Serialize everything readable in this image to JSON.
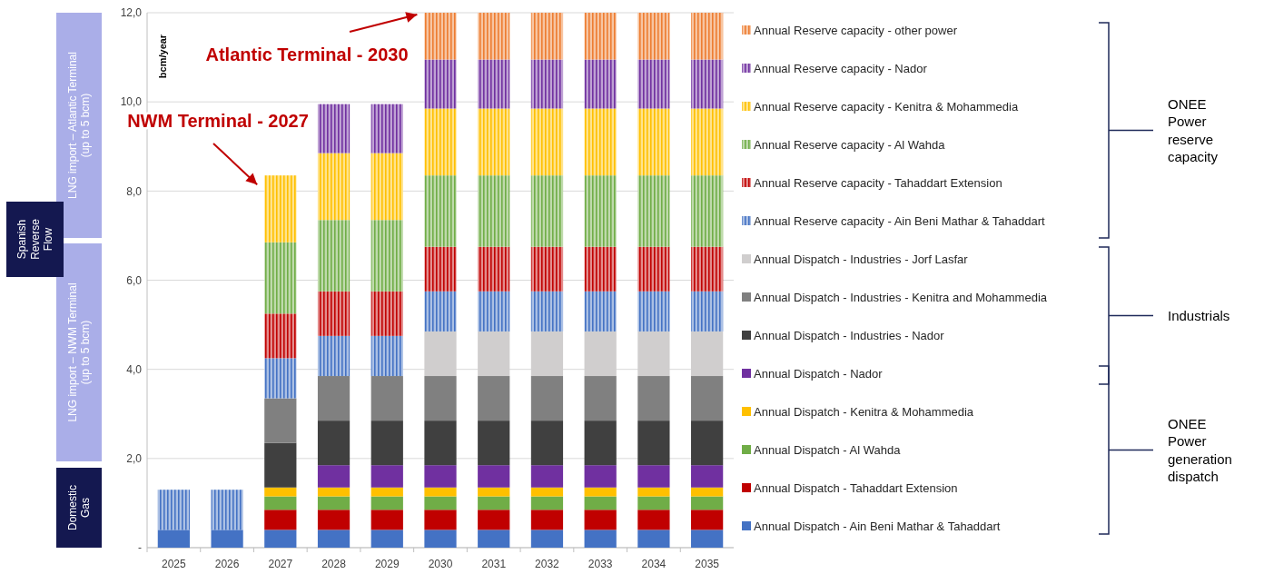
{
  "chart_data": {
    "type": "bar",
    "stacked": true,
    "ylabel": "bcm/year",
    "categories": [
      "2025",
      "2026",
      "2027",
      "2028",
      "2029",
      "2030",
      "2031",
      "2032",
      "2033",
      "2034",
      "2035"
    ],
    "ylim": [
      0,
      12
    ],
    "yticks": [
      {
        "value": 0,
        "label": "-"
      },
      {
        "value": 2,
        "label": "2,0"
      },
      {
        "value": 4,
        "label": "4,0"
      },
      {
        "value": 6,
        "label": "6,0"
      },
      {
        "value": 8,
        "label": "8,0"
      },
      {
        "value": 10,
        "label": "10,0"
      },
      {
        "value": 12,
        "label": "12,0"
      }
    ],
    "grid": "y",
    "legend": "right",
    "series": [
      {
        "name": "Annual Dispatch - Ain Beni Mathar & Tahaddart",
        "color": "#4472c4",
        "values": [
          0.4,
          0.4,
          0.4,
          0.4,
          0.4,
          0.4,
          0.4,
          0.4,
          0.4,
          0.4,
          0.4
        ]
      },
      {
        "name": "Annual Dispatch - Tahaddart Extension",
        "color": "#c00000",
        "values": [
          0,
          0,
          0.45,
          0.45,
          0.45,
          0.45,
          0.45,
          0.45,
          0.45,
          0.45,
          0.45
        ]
      },
      {
        "name": "Annual Dispatch - Al Wahda",
        "color": "#70ad47",
        "values": [
          0,
          0,
          0.3,
          0.3,
          0.3,
          0.3,
          0.3,
          0.3,
          0.3,
          0.3,
          0.3
        ]
      },
      {
        "name": "Annual Dispatch - Kenitra & Mohammedia",
        "color": "#ffc000",
        "values": [
          0,
          0,
          0.2,
          0.2,
          0.2,
          0.2,
          0.2,
          0.2,
          0.2,
          0.2,
          0.2
        ]
      },
      {
        "name": "Annual Dispatch - Nador",
        "color": "#7030a0",
        "values": [
          0,
          0,
          0,
          0.5,
          0.5,
          0.5,
          0.5,
          0.5,
          0.5,
          0.5,
          0.5
        ]
      },
      {
        "name": "Annual Dispatch - Industries - Nador",
        "color": "#404040",
        "values": [
          0,
          0,
          1,
          1,
          1,
          1,
          1,
          1,
          1,
          1,
          1
        ]
      },
      {
        "name": "Annual Dispatch - Industries - Kenitra and Mohammedia",
        "color": "#808080",
        "values": [
          0,
          0,
          1,
          1,
          1,
          1,
          1,
          1,
          1,
          1,
          1
        ]
      },
      {
        "name": "Annual Dispatch - Industries - Jorf Lasfar",
        "color": "#d0cece",
        "values": [
          0,
          0,
          0,
          0,
          0,
          1,
          1,
          1,
          1,
          1,
          1
        ]
      },
      {
        "name": "Annual Reserve capacity - Ain Beni Mathar & Tahaddart",
        "color": "#4472c4",
        "values": [
          0.9,
          0.9,
          0.9,
          0.9,
          0.9,
          0.9,
          0.9,
          0.9,
          0.9,
          0.9,
          0.9
        ]
      },
      {
        "name": "Annual Reserve capacity - Tahaddart Extension",
        "color": "#c00000",
        "values": [
          0,
          0,
          1,
          1,
          1,
          1,
          1,
          1,
          1,
          1,
          1
        ]
      },
      {
        "name": "Annual Reserve capacity - Al Wahda",
        "color": "#70ad47",
        "values": [
          0,
          0,
          1.6,
          1.6,
          1.6,
          1.6,
          1.6,
          1.6,
          1.6,
          1.6,
          1.6
        ]
      },
      {
        "name": "Annual Reserve capacity - Kenitra & Mohammedia",
        "color": "#ffc000",
        "values": [
          0,
          0,
          1.5,
          1.5,
          1.5,
          1.5,
          1.5,
          1.5,
          1.5,
          1.5,
          1.5
        ]
      },
      {
        "name": "Annual Reserve capacity - Nador",
        "color": "#7030a0",
        "values": [
          0,
          0,
          0,
          1.1,
          1.1,
          1.1,
          1.1,
          1.1,
          1.1,
          1.1,
          1.1
        ]
      },
      {
        "name": "Annual Reserve capacity - other power",
        "color": "#ed7d31",
        "values": [
          0,
          0,
          0,
          0,
          0,
          1.05,
          1.05,
          1.05,
          1.05,
          1.05,
          1.05
        ]
      }
    ],
    "annotations": [
      {
        "text": "NWM Terminal - 2027",
        "x": "2027",
        "y": 8.35
      },
      {
        "text": "Atlantic Terminal - 2030",
        "x": "2030",
        "y": 12
      },
      "Domestic Gas",
      "LNG import – NWM Terminal (up to 5 bcm)",
      "LNG import – Atlantic Terminal (up to 5 bcm)",
      "Spanish Reverse Flow",
      "ONEE Power reserve capacity",
      "Industrials",
      "ONEE Power generation dispatch"
    ]
  }
}
